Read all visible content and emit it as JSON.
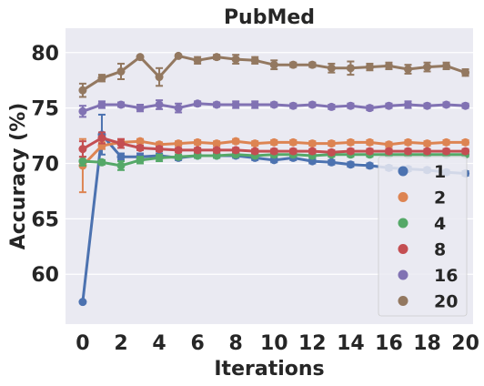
{
  "chart_data": {
    "type": "line",
    "title": "PubMed",
    "xlabel": "Iterations",
    "ylabel": "Accuracy (%)",
    "xlim": [
      -0.9,
      20.4
    ],
    "ylim": [
      55.5,
      82.2
    ],
    "xticks": [
      0,
      2,
      4,
      6,
      8,
      10,
      12,
      14,
      16,
      18,
      20
    ],
    "yticks": [
      60,
      65,
      70,
      75,
      80
    ],
    "grid": true,
    "legend_position": "bottom-right",
    "x": [
      0,
      1,
      2,
      3,
      4,
      5,
      6,
      7,
      8,
      9,
      10,
      11,
      12,
      13,
      14,
      15,
      16,
      17,
      18,
      19,
      20
    ],
    "series": [
      {
        "name": "1",
        "color": "#4c72b0",
        "values": [
          57.5,
          72.6,
          70.6,
          70.6,
          70.7,
          70.5,
          70.7,
          70.7,
          70.7,
          70.5,
          70.3,
          70.5,
          70.2,
          70.1,
          69.9,
          69.8,
          69.6,
          69.5,
          69.4,
          69.2,
          69.1
        ],
        "errors": [
          0,
          1.8,
          0.3,
          0.3,
          0.2,
          0.2,
          0.2,
          0.2,
          0.2,
          0.2,
          0.2,
          0.2,
          0.2,
          0.2,
          0.2,
          0.2,
          0.2,
          0.2,
          0.2,
          0.2,
          0.2
        ]
      },
      {
        "name": "2",
        "color": "#dd8452",
        "values": [
          69.8,
          71.6,
          71.9,
          72.0,
          71.7,
          71.8,
          71.9,
          71.8,
          72.0,
          71.8,
          71.9,
          71.9,
          71.8,
          71.8,
          71.9,
          71.9,
          71.7,
          71.9,
          71.8,
          71.9,
          71.9
        ],
        "errors": [
          2.4,
          0.3,
          0.2,
          0.2,
          0.2,
          0.2,
          0.2,
          0.2,
          0.2,
          0.2,
          0.2,
          0.2,
          0.2,
          0.2,
          0.2,
          0.2,
          0.2,
          0.2,
          0.2,
          0.2,
          0.2
        ]
      },
      {
        "name": "4",
        "color": "#55a868",
        "values": [
          70.2,
          70.1,
          69.8,
          70.3,
          70.5,
          70.6,
          70.7,
          70.7,
          70.8,
          70.7,
          70.8,
          70.8,
          70.7,
          70.8,
          70.8,
          70.8,
          70.8,
          70.8,
          70.8,
          70.8,
          70.8
        ],
        "errors": [
          0.4,
          0.2,
          0.4,
          0.3,
          0.3,
          0.2,
          0.2,
          0.2,
          0.2,
          0.2,
          0.2,
          0.2,
          0.2,
          0.2,
          0.2,
          0.2,
          0.2,
          0.2,
          0.2,
          0.2,
          0.2
        ]
      },
      {
        "name": "8",
        "color": "#c44e52",
        "values": [
          71.3,
          72.3,
          71.8,
          71.4,
          71.3,
          71.2,
          71.2,
          71.2,
          71.2,
          71.1,
          71.1,
          71.1,
          71.1,
          71.0,
          71.1,
          71.1,
          71.1,
          71.1,
          71.1,
          71.1,
          71.1
        ],
        "errors": [
          0.7,
          0.5,
          0.4,
          0.2,
          0.2,
          0.2,
          0.2,
          0.2,
          0.2,
          0.2,
          0.2,
          0.2,
          0.2,
          0.2,
          0.2,
          0.2,
          0.2,
          0.2,
          0.2,
          0.2,
          0.2
        ]
      },
      {
        "name": "16",
        "color": "#8172b3",
        "values": [
          74.7,
          75.3,
          75.3,
          75.0,
          75.3,
          75.0,
          75.4,
          75.3,
          75.3,
          75.3,
          75.3,
          75.2,
          75.3,
          75.1,
          75.2,
          75.0,
          75.2,
          75.3,
          75.2,
          75.3,
          75.2
        ],
        "errors": [
          0.5,
          0.3,
          0.2,
          0.3,
          0.4,
          0.4,
          0.2,
          0.2,
          0.3,
          0.3,
          0.2,
          0.2,
          0.2,
          0.2,
          0.2,
          0.2,
          0.2,
          0.3,
          0.2,
          0.2,
          0.2
        ]
      },
      {
        "name": "20",
        "color": "#937860",
        "values": [
          76.6,
          77.7,
          78.3,
          79.6,
          77.8,
          79.7,
          79.3,
          79.6,
          79.4,
          79.3,
          78.9,
          78.9,
          78.9,
          78.6,
          78.6,
          78.7,
          78.8,
          78.5,
          78.7,
          78.8,
          78.2
        ],
        "errors": [
          0.6,
          0.3,
          0.7,
          0.1,
          0.8,
          0.1,
          0.3,
          0.2,
          0.4,
          0.3,
          0.4,
          0.2,
          0.2,
          0.4,
          0.6,
          0.3,
          0.3,
          0.4,
          0.4,
          0.3,
          0.3
        ]
      }
    ]
  }
}
